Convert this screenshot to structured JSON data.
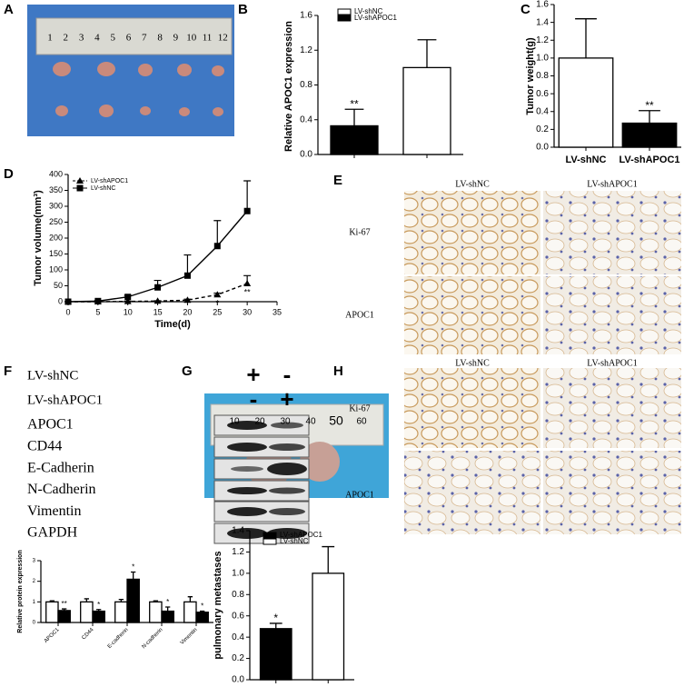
{
  "panels": [
    "A",
    "B",
    "C",
    "D",
    "E",
    "F",
    "G",
    "H"
  ],
  "ruler_a": [
    1,
    2,
    3,
    4,
    5,
    6,
    7,
    8,
    9,
    10,
    11,
    12
  ],
  "ruler_g": [
    10,
    20,
    30,
    40,
    50,
    60
  ],
  "blot": {
    "conditions": [
      {
        "label": "LV-shNC",
        "lanes": [
          "+",
          "-"
        ]
      },
      {
        "label": "LV-shAPOC1",
        "lanes": [
          "-",
          "+"
        ]
      }
    ],
    "proteins": [
      "APOC1",
      "CD44",
      "E-Cadherin",
      "N-Cadherin",
      "Vimentin",
      "GAPDH"
    ]
  },
  "ihc_e": {
    "columns": [
      "LV-shNC",
      "LV-shAPOC1"
    ],
    "rows": [
      "Ki-67",
      "APOC1"
    ]
  },
  "ihc_h": {
    "columns": [
      "LV-shNC",
      "LV-shAPOC1"
    ],
    "rows": [
      "Ki-67",
      "APOC1"
    ]
  },
  "chart_data": [
    {
      "type": "bar",
      "ylabel": "Relative APOC1 expression",
      "categories": [
        null,
        null
      ],
      "values": [
        0.33,
        1.0
      ],
      "errors": [
        0.19,
        0.32
      ],
      "colors": [
        "#000000",
        "#ffffff"
      ],
      "annotations": [
        "**",
        null
      ],
      "legend": [
        {
          "name": "LV-shNC",
          "color": "#ffffff"
        },
        {
          "name": "LV-shAPOC1",
          "color": "#000000"
        }
      ],
      "ylim": [
        0,
        1.6
      ],
      "yticks": [
        {
          "value": 0,
          "label": "0.0"
        },
        {
          "value": 0.4,
          "label": "0.4"
        },
        {
          "value": 0.8,
          "label": "0.8"
        },
        {
          "value": 1.2,
          "label": "1.2"
        },
        {
          "value": 1.6,
          "label": "1.6"
        }
      ]
    },
    {
      "type": "bar",
      "ylabel": "Tumor weight(g)",
      "categories": [
        "LV-shNC",
        "LV-shAPOC1"
      ],
      "values": [
        1.0,
        0.27
      ],
      "errors": [
        0.44,
        0.14
      ],
      "colors": [
        "#ffffff",
        "#000000"
      ],
      "annotations": [
        null,
        "**"
      ],
      "ylim": [
        0,
        1.6
      ],
      "yticks": [
        {
          "value": 0,
          "label": "0.0"
        },
        {
          "value": 0.2,
          "label": "0.2"
        },
        {
          "value": 0.4,
          "label": "0.4"
        },
        {
          "value": 0.6,
          "label": "0.6"
        },
        {
          "value": 0.8,
          "label": "0.8"
        },
        {
          "value": 1.0,
          "label": "1.0"
        },
        {
          "value": 1.2,
          "label": "1.2"
        },
        {
          "value": 1.4,
          "label": "1.4"
        },
        {
          "value": 1.6,
          "label": "1.6"
        }
      ]
    },
    {
      "type": "line",
      "xlabel": "Time(d)",
      "ylabel": "Tumor volume(mm³)",
      "x": [
        0,
        5,
        10,
        15,
        20,
        25,
        30
      ],
      "series": [
        {
          "name": "LV-shAPOC1",
          "color": "#000000",
          "marker": "triangle",
          "dashed": true,
          "values": [
            0,
            0,
            1,
            2,
            5,
            22,
            57
          ],
          "errors": [
            0,
            0,
            1,
            1,
            3,
            5,
            25
          ],
          "annotations": [
            null,
            null,
            null,
            null,
            null,
            "*",
            "**"
          ]
        },
        {
          "name": "LV-shNC",
          "color": "#000000",
          "marker": "square",
          "dashed": false,
          "values": [
            0,
            2,
            15,
            45,
            82,
            175,
            285
          ],
          "errors": [
            0,
            2,
            5,
            22,
            65,
            80,
            95
          ],
          "annotations": [
            null,
            null,
            null,
            null,
            null,
            null,
            null
          ]
        }
      ],
      "xlim": [
        0,
        35
      ],
      "xticks": [
        0,
        5,
        10,
        15,
        20,
        25,
        30,
        35
      ],
      "ylim": [
        0,
        400
      ],
      "yticks": [
        0,
        50,
        100,
        150,
        200,
        250,
        300,
        350,
        400
      ]
    },
    {
      "type": "bar",
      "ylabel": "Relative protein expression",
      "categories": [
        "APOC1",
        "CD44",
        "E-cadherin",
        "N-cadherin",
        "Vimentin"
      ],
      "series": [
        {
          "color": "#ffffff",
          "values": [
            1.0,
            1.0,
            1.0,
            1.0,
            1.0
          ],
          "errors": [
            0.05,
            0.15,
            0.12,
            0.05,
            0.25
          ],
          "annotations": [
            null,
            null,
            null,
            null,
            null
          ]
        },
        {
          "color": "#000000",
          "values": [
            0.58,
            0.55,
            2.1,
            0.55,
            0.5
          ],
          "errors": [
            0.08,
            0.08,
            0.35,
            0.2,
            0.05
          ],
          "annotations": [
            "**",
            "*",
            "*",
            "*",
            "*"
          ]
        }
      ],
      "ylim": [
        0,
        3
      ],
      "yticks": [
        0,
        1,
        2,
        3
      ]
    },
    {
      "type": "bar",
      "ylabel": "pulmonary metastases",
      "categories": [
        null,
        null
      ],
      "values": [
        0.48,
        1.0
      ],
      "errors": [
        0.05,
        0.25
      ],
      "colors": [
        "#000000",
        "#ffffff"
      ],
      "annotations": [
        "*",
        null
      ],
      "legend": [
        {
          "name": "LV-shAPOC1",
          "color": "#000000"
        },
        {
          "name": "LV-shNC",
          "color": "#ffffff"
        }
      ],
      "ylim": [
        0,
        1.4
      ],
      "yticks": [
        {
          "value": 0,
          "label": "0.0"
        },
        {
          "value": 0.2,
          "label": "0.2"
        },
        {
          "value": 0.4,
          "label": "0.4"
        },
        {
          "value": 0.6,
          "label": "0.6"
        },
        {
          "value": 0.8,
          "label": "0.8"
        },
        {
          "value": 1.0,
          "label": "1.0"
        },
        {
          "value": 1.2,
          "label": "1.2"
        },
        {
          "value": 1.4,
          "label": "1.4"
        }
      ]
    }
  ]
}
